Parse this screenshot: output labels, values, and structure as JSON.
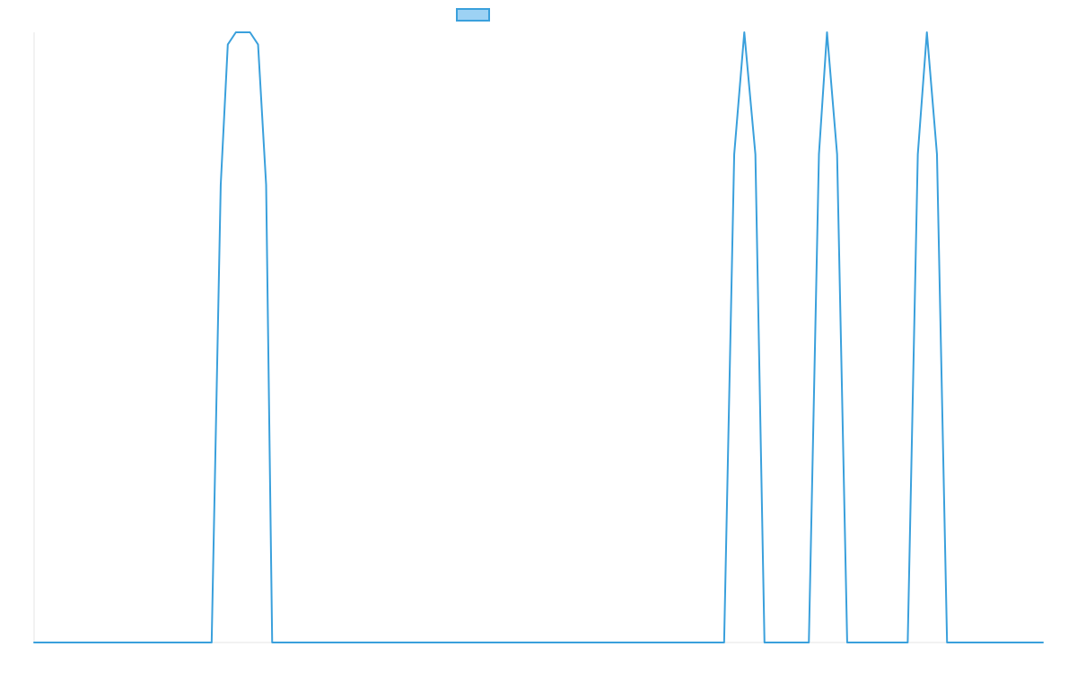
{
  "chart_data": {
    "type": "line",
    "title": "",
    "xlabel": "",
    "ylabel": "",
    "xlim": [
      0,
      100
    ],
    "ylim": [
      0,
      1
    ],
    "grid": false,
    "legend": {
      "placement": "top-center",
      "entries": [
        {
          "name": "",
          "stroke": "#3aa0dc",
          "fill": "#9dd2f4"
        }
      ]
    },
    "series": [
      {
        "name": "",
        "color": "#3aa0dc",
        "x": [
          0,
          17.6,
          18.5,
          19.2,
          20.0,
          20.7,
          21.4,
          22.2,
          23.0,
          23.6,
          68.4,
          69.4,
          70.4,
          71.5,
          72.4,
          76.8,
          77.8,
          78.6,
          79.6,
          80.6,
          86.6,
          87.6,
          88.5,
          89.5,
          90.5,
          100
        ],
        "y": [
          0,
          0,
          0.75,
          0.98,
          1,
          1,
          1,
          0.98,
          0.75,
          0,
          0,
          0.8,
          1,
          0.8,
          0,
          0,
          0.8,
          1,
          0.8,
          0,
          0,
          0.8,
          1,
          0.8,
          0,
          0
        ]
      }
    ]
  }
}
